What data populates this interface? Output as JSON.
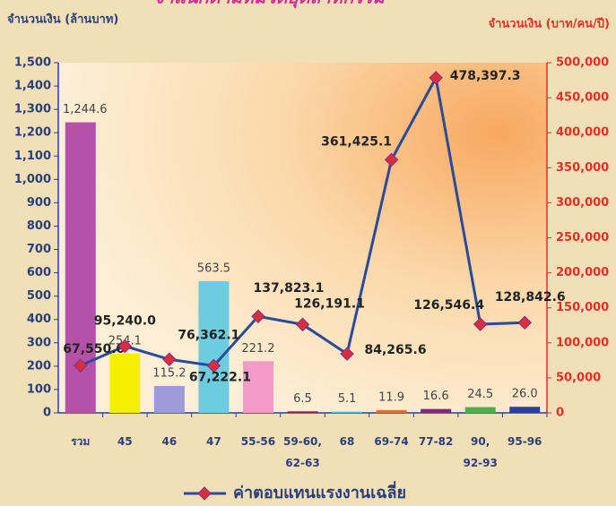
{
  "chart_data": {
    "type": "bar_line",
    "title": "จำแนกตามหมวดอุตสาหกรรม",
    "y_label": "จำนวนเงิน (ล้านบาท)",
    "y2_label": "จำนวนเงิน (บาท/คน/ปี)",
    "categories": [
      "รวม",
      "45",
      "46",
      "47",
      "55-56",
      "59-60,\n62-63",
      "68",
      "69-74",
      "77-82",
      "90,\n92-93",
      "95-96"
    ],
    "bar": {
      "colors": [
        "#b452aa",
        "#f4ee00",
        "#9c9ad8",
        "#6ccde0",
        "#f29ac8",
        "#8a2050",
        "#5bc0de",
        "#e07030",
        "#7a2a80",
        "#4caf50",
        "#2a3f9a"
      ],
      "values": [
        1244.6,
        254.1,
        115.2,
        563.5,
        221.2,
        6.5,
        5.1,
        11.9,
        16.6,
        24.5,
        26.0
      ],
      "value_labels": [
        "1,244.6",
        "254.1",
        "115.2",
        "563.5",
        "221.2",
        "6.5",
        "5.1",
        "11.9",
        "16.6",
        "24.5",
        "26.0"
      ]
    },
    "series": [
      {
        "name": "ค่าตอบแทนแรงงานเฉลี่ย",
        "color": "#2a4a9a",
        "marker_color": "#d8303a",
        "axis": "y2",
        "values": [
          67550.0,
          95240.0,
          76362.1,
          67222.1,
          137823.1,
          126191.1,
          84265.6,
          361425.1,
          478397.3,
          126546.4,
          128842.6
        ],
        "value_labels": [
          "67,550.0",
          "95,240.0",
          "76,362.1",
          "67,222.1",
          "137,823.1",
          "126,191.1",
          "84,265.6",
          "361,425.1",
          "478,397.3",
          "126,546.4",
          "128,842.6"
        ]
      }
    ],
    "ylim": [
      0,
      1500
    ],
    "yticks": [
      0,
      100,
      200,
      300,
      400,
      500,
      600,
      700,
      800,
      900,
      {
        "value": 1000,
        "label": "1,000"
      },
      {
        "value": 1100,
        "label": "1,100"
      },
      {
        "value": 1200,
        "label": "1,200"
      },
      {
        "value": 1300,
        "label": "1,300"
      },
      {
        "value": 1400,
        "label": "1,400"
      },
      {
        "value": 1500,
        "label": "1,500"
      }
    ],
    "y2lim": [
      0,
      500000
    ],
    "y2ticks": [
      0,
      {
        "value": 50000,
        "label": "50,000"
      },
      {
        "value": 100000,
        "label": "100,000"
      },
      {
        "value": 150000,
        "label": "150,000"
      },
      {
        "value": 200000,
        "label": "200,000"
      },
      {
        "value": 250000,
        "label": "250,000"
      },
      {
        "value": 300000,
        "label": "300,000"
      },
      {
        "value": 350000,
        "label": "350,000"
      },
      {
        "value": 400000,
        "label": "400,000"
      },
      {
        "value": 450000,
        "label": "450,000"
      },
      {
        "value": 500000,
        "label": "500,000"
      }
    ],
    "legend": "bottom"
  }
}
